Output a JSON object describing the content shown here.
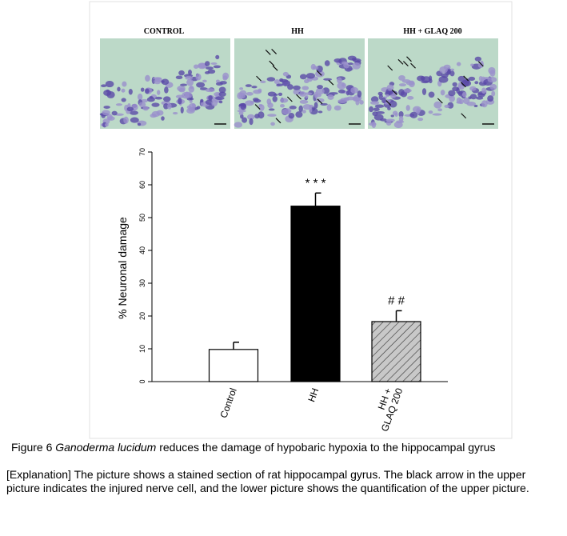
{
  "panels": [
    "CONTROL",
    "HH",
    "HH + GLAQ 200"
  ],
  "chart_data": {
    "type": "bar",
    "ylabel": "% Neuronal damage",
    "categories": [
      "Control",
      "HH",
      [
        "HH +",
        "GLAQ 200"
      ]
    ],
    "values": [
      9.8,
      53.5,
      18.3
    ],
    "errors": [
      2.2,
      4.0,
      3.3
    ],
    "colors": [
      "#ffffff",
      "#000000",
      "#c8c8c8"
    ],
    "hatch": [
      false,
      false,
      true
    ],
    "annotations": [
      null,
      "* * *",
      "# #"
    ],
    "ylim": [
      0,
      70
    ],
    "yticks": [
      0,
      10,
      20,
      30,
      40,
      50,
      60,
      70
    ]
  },
  "caption": {
    "prefix": "Figure 6 ",
    "species": "Ganoderma lucidum",
    "rest": " reduces the damage of hypobaric hypoxia to the hippocampal gyrus"
  },
  "explanation": "[Explanation] The picture shows a stained section of rat hippocampal gyrus. The black arrow in the upper picture indicates the injured nerve cell, and the lower picture shows the quantification of the upper picture."
}
